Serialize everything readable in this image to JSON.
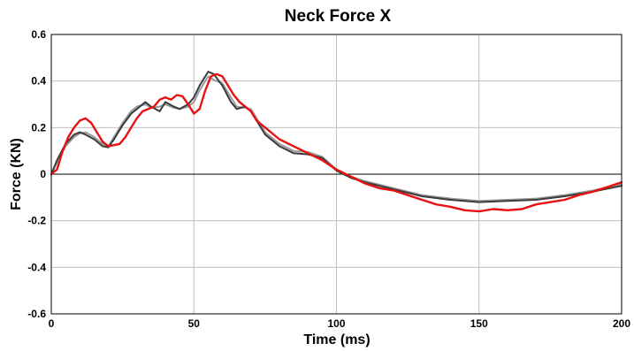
{
  "chart_data": {
    "type": "line",
    "title": "Neck Force X",
    "xlabel": "Time (ms)",
    "ylabel": "Force (KN)",
    "xlim": [
      0,
      200
    ],
    "ylim": [
      -0.6,
      0.6
    ],
    "x_ticks": [
      "0",
      "50",
      "100",
      "150",
      "200"
    ],
    "y_ticks": [
      "0.6",
      "0.4",
      "0.2",
      "0",
      "-0.2",
      "-0.4",
      "-0.6"
    ],
    "x_tick_values": [
      0,
      50,
      100,
      150,
      200
    ],
    "y_tick_values": [
      0.6,
      0.4,
      0.2,
      0,
      -0.2,
      -0.4,
      -0.6
    ],
    "grid": true,
    "legend": "none",
    "series": [
      {
        "color": "#9a9a9a",
        "x": [
          0,
          2,
          5,
          8,
          10,
          12,
          15,
          18,
          20,
          22,
          25,
          28,
          30,
          33,
          35,
          38,
          40,
          43,
          45,
          48,
          50,
          52,
          55,
          57,
          60,
          63,
          65,
          68,
          70,
          72,
          75,
          80,
          85,
          90,
          95,
          100,
          105,
          110,
          120,
          130,
          140,
          150,
          160,
          170,
          180,
          190,
          200
        ],
        "values": [
          0,
          0.05,
          0.12,
          0.16,
          0.175,
          0.18,
          0.16,
          0.13,
          0.12,
          0.16,
          0.22,
          0.27,
          0.29,
          0.3,
          0.285,
          0.29,
          0.3,
          0.285,
          0.28,
          0.29,
          0.31,
          0.36,
          0.42,
          0.405,
          0.39,
          0.33,
          0.29,
          0.285,
          0.28,
          0.24,
          0.18,
          0.13,
          0.1,
          0.095,
          0.075,
          0.02,
          -0.01,
          -0.03,
          -0.06,
          -0.09,
          -0.105,
          -0.115,
          -0.11,
          -0.105,
          -0.09,
          -0.07,
          -0.045
        ]
      },
      {
        "color": "#3c3c3c",
        "x": [
          0,
          2,
          5,
          8,
          10,
          12,
          15,
          18,
          20,
          22,
          25,
          28,
          30,
          33,
          35,
          38,
          40,
          43,
          45,
          48,
          50,
          52,
          55,
          57,
          60,
          63,
          65,
          68,
          70,
          72,
          75,
          80,
          85,
          90,
          95,
          100,
          105,
          110,
          120,
          130,
          140,
          150,
          160,
          170,
          180,
          190,
          200
        ],
        "values": [
          0,
          0.06,
          0.13,
          0.17,
          0.18,
          0.17,
          0.15,
          0.12,
          0.115,
          0.15,
          0.21,
          0.26,
          0.28,
          0.31,
          0.29,
          0.27,
          0.31,
          0.29,
          0.28,
          0.3,
          0.33,
          0.38,
          0.44,
          0.43,
          0.38,
          0.31,
          0.28,
          0.29,
          0.27,
          0.23,
          0.17,
          0.12,
          0.09,
          0.085,
          0.07,
          0.015,
          -0.015,
          -0.035,
          -0.065,
          -0.095,
          -0.11,
          -0.12,
          -0.115,
          -0.11,
          -0.095,
          -0.075,
          -0.05
        ]
      },
      {
        "color": "#e81010",
        "x": [
          0,
          2,
          4,
          6,
          8,
          10,
          12,
          14,
          16,
          18,
          20,
          22,
          24,
          26,
          28,
          30,
          32,
          34,
          36,
          38,
          40,
          42,
          44,
          46,
          48,
          50,
          52,
          54,
          56,
          58,
          60,
          62,
          64,
          66,
          68,
          70,
          72,
          75,
          80,
          85,
          90,
          95,
          100,
          105,
          110,
          115,
          120,
          125,
          130,
          135,
          140,
          145,
          150,
          155,
          160,
          165,
          170,
          175,
          180,
          185,
          190,
          195,
          200
        ],
        "values": [
          0,
          0.02,
          0.1,
          0.16,
          0.2,
          0.23,
          0.24,
          0.22,
          0.18,
          0.14,
          0.12,
          0.125,
          0.13,
          0.16,
          0.2,
          0.24,
          0.27,
          0.28,
          0.29,
          0.32,
          0.33,
          0.32,
          0.34,
          0.335,
          0.3,
          0.26,
          0.28,
          0.36,
          0.42,
          0.43,
          0.42,
          0.38,
          0.34,
          0.31,
          0.29,
          0.27,
          0.23,
          0.2,
          0.15,
          0.12,
          0.09,
          0.06,
          0.02,
          -0.01,
          -0.04,
          -0.06,
          -0.07,
          -0.09,
          -0.11,
          -0.13,
          -0.14,
          -0.155,
          -0.16,
          -0.15,
          -0.155,
          -0.15,
          -0.13,
          -0.12,
          -0.11,
          -0.09,
          -0.075,
          -0.055,
          -0.035
        ]
      }
    ]
  }
}
